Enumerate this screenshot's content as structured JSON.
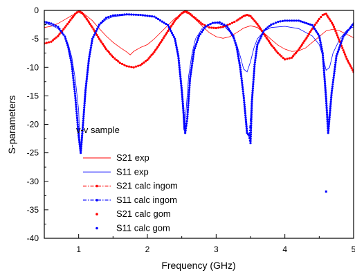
{
  "chart_data": {
    "type": "line",
    "title": "",
    "xlabel": "Frequency (GHz)",
    "ylabel": "S-parameters",
    "xlim": [
      0.5,
      5.0
    ],
    "ylim": [
      -40,
      0
    ],
    "x_ticks": [
      1,
      2,
      3,
      4,
      5
    ],
    "x_tick_labels": [
      "1",
      "2",
      "3",
      "4",
      "5"
    ],
    "y_ticks": [
      0,
      -5,
      -10,
      -15,
      -20,
      -25,
      -30,
      -35,
      -40
    ],
    "y_tick_labels": [
      "0",
      "-5",
      "-10",
      "-15",
      "-20",
      "-25",
      "-30",
      "-35",
      "-40"
    ],
    "grid": false,
    "legend_position": "bottom-left",
    "annotation": "v-v sample",
    "colors": {
      "red": "#ff0000",
      "blue": "#0000ff"
    },
    "series": [
      {
        "name": "S21 exp",
        "style": "thin-line",
        "color": "#ff0000",
        "x": [
          0.5,
          0.6,
          0.7,
          0.8,
          0.9,
          1.0,
          1.1,
          1.2,
          1.3,
          1.4,
          1.5,
          1.6,
          1.7,
          1.75,
          1.8,
          1.9,
          2.0,
          2.1,
          2.2,
          2.3,
          2.4,
          2.5,
          2.55,
          2.6,
          2.7,
          2.8,
          2.9,
          3.0,
          3.1,
          3.2,
          3.3,
          3.4,
          3.5,
          3.6,
          3.7,
          3.8,
          3.9,
          4.0,
          4.1,
          4.2,
          4.3,
          4.4,
          4.5,
          4.6,
          4.7,
          4.8,
          4.9,
          5.0
        ],
        "y": [
          -3.0,
          -2.8,
          -2.3,
          -1.6,
          -0.9,
          -0.4,
          -0.8,
          -1.8,
          -3.2,
          -4.5,
          -5.6,
          -6.5,
          -7.3,
          -7.8,
          -7.2,
          -6.5,
          -6.0,
          -5.0,
          -3.8,
          -2.6,
          -1.4,
          -0.6,
          -0.4,
          -0.6,
          -1.6,
          -2.8,
          -3.9,
          -4.6,
          -4.9,
          -4.6,
          -3.9,
          -3.1,
          -2.7,
          -3.0,
          -4.0,
          -5.1,
          -6.1,
          -6.8,
          -7.2,
          -7.1,
          -6.6,
          -5.6,
          -4.6,
          -3.6,
          -3.3,
          -3.6,
          -4.2,
          -4.8
        ]
      },
      {
        "name": "S11 exp",
        "style": "thin-line",
        "color": "#0000ff",
        "x": [
          0.5,
          0.6,
          0.7,
          0.8,
          0.85,
          0.9,
          0.95,
          1.0,
          1.02,
          1.05,
          1.1,
          1.15,
          1.2,
          1.3,
          1.4,
          1.5,
          1.7,
          1.9,
          2.1,
          2.3,
          2.4,
          2.45,
          2.5,
          2.53,
          2.56,
          2.6,
          2.65,
          2.7,
          2.8,
          2.9,
          3.0,
          3.1,
          3.2,
          3.3,
          3.35,
          3.4,
          3.45,
          3.5,
          3.55,
          3.6,
          3.7,
          3.8,
          4.0,
          4.2,
          4.4,
          4.5,
          4.55,
          4.6,
          4.65,
          4.7,
          4.8,
          4.9,
          5.0
        ],
        "y": [
          -2.2,
          -2.6,
          -3.2,
          -4.6,
          -6.0,
          -8.2,
          -12.0,
          -17.5,
          -24.5,
          -22.0,
          -14.5,
          -8.5,
          -5.0,
          -2.6,
          -1.6,
          -1.1,
          -0.8,
          -0.8,
          -1.1,
          -2.6,
          -5.0,
          -8.5,
          -14.5,
          -21.0,
          -18.0,
          -11.5,
          -7.5,
          -5.0,
          -3.1,
          -2.4,
          -2.2,
          -2.6,
          -3.8,
          -6.0,
          -8.0,
          -10.3,
          -10.8,
          -9.0,
          -6.6,
          -5.0,
          -3.6,
          -3.0,
          -2.8,
          -3.2,
          -4.5,
          -6.0,
          -8.0,
          -10.5,
          -10.0,
          -7.5,
          -5.0,
          -3.5,
          -2.9
        ]
      },
      {
        "name": "S21 calc ingom",
        "style": "dash-dot",
        "color": "#ff0000",
        "x": [
          0.5,
          0.6,
          0.7,
          0.8,
          0.9,
          0.95,
          1.0,
          1.05,
          1.1,
          1.2,
          1.3,
          1.4,
          1.5,
          1.6,
          1.7,
          1.8,
          1.9,
          2.0,
          2.1,
          2.2,
          2.3,
          2.4,
          2.5,
          2.55,
          2.6,
          2.7,
          2.8,
          2.9,
          3.0,
          3.1,
          3.2,
          3.3,
          3.4,
          3.45,
          3.5,
          3.6,
          3.7,
          3.8,
          3.9,
          4.0,
          4.1,
          4.2,
          4.3,
          4.4,
          4.5,
          4.55,
          4.6,
          4.7,
          4.8,
          4.9,
          5.0
        ],
        "y": [
          -5.8,
          -5.5,
          -4.5,
          -3.0,
          -1.4,
          -0.6,
          -0.1,
          -0.4,
          -1.2,
          -3.0,
          -5.0,
          -6.8,
          -8.2,
          -9.2,
          -9.8,
          -10.0,
          -9.6,
          -8.7,
          -7.3,
          -5.5,
          -3.6,
          -1.8,
          -0.5,
          -0.1,
          -0.4,
          -1.4,
          -2.4,
          -3.0,
          -3.1,
          -2.9,
          -2.4,
          -1.8,
          -1.0,
          -0.8,
          -1.0,
          -2.4,
          -4.2,
          -6.0,
          -7.5,
          -8.6,
          -8.3,
          -6.9,
          -5.1,
          -3.2,
          -1.5,
          -0.8,
          -0.6,
          -2.5,
          -5.5,
          -8.5,
          -10.8
        ]
      },
      {
        "name": "S11 calc ingom",
        "style": "dash-dot",
        "color": "#0000ff",
        "x": [
          0.5,
          0.6,
          0.7,
          0.8,
          0.85,
          0.9,
          0.95,
          1.0,
          1.03,
          1.06,
          1.1,
          1.15,
          1.2,
          1.3,
          1.4,
          1.5,
          1.7,
          1.9,
          2.1,
          2.3,
          2.4,
          2.45,
          2.5,
          2.55,
          2.58,
          2.62,
          2.68,
          2.75,
          2.85,
          2.95,
          3.05,
          3.15,
          3.25,
          3.3,
          3.35,
          3.4,
          3.45,
          3.48,
          3.52,
          3.56,
          3.6,
          3.7,
          3.8,
          3.9,
          4.0,
          4.2,
          4.4,
          4.5,
          4.55,
          4.6,
          4.63,
          4.68,
          4.75,
          4.85,
          5.0
        ],
        "y": [
          -2.0,
          -2.3,
          -2.9,
          -4.6,
          -6.5,
          -9.5,
          -15.0,
          -22.0,
          -25.0,
          -20.5,
          -14.0,
          -8.5,
          -5.0,
          -2.5,
          -1.3,
          -0.9,
          -0.7,
          -0.8,
          -1.1,
          -2.6,
          -5.0,
          -8.0,
          -14.0,
          -21.5,
          -19.0,
          -12.0,
          -7.0,
          -4.5,
          -2.8,
          -2.2,
          -2.1,
          -2.7,
          -4.5,
          -6.5,
          -10.0,
          -15.0,
          -21.5,
          -22.0,
          -16.0,
          -9.5,
          -6.0,
          -3.5,
          -2.5,
          -2.0,
          -1.8,
          -1.8,
          -2.6,
          -4.5,
          -7.5,
          -15.5,
          -21.5,
          -14.5,
          -8.0,
          -4.6,
          -2.3
        ]
      },
      {
        "name": "S21 calc gom",
        "style": "dots",
        "color": "#ff0000",
        "x": [
          0.5,
          0.6,
          0.7,
          0.8,
          0.9,
          0.95,
          1.0,
          1.05,
          1.1,
          1.2,
          1.3,
          1.4,
          1.5,
          1.6,
          1.7,
          1.8,
          1.9,
          2.0,
          2.1,
          2.2,
          2.3,
          2.4,
          2.5,
          2.55,
          2.6,
          2.7,
          2.8,
          2.9,
          3.0,
          3.1,
          3.2,
          3.3,
          3.4,
          3.45,
          3.5,
          3.6,
          3.7,
          3.8,
          3.9,
          4.0,
          4.1,
          4.2,
          4.3,
          4.4,
          4.5,
          4.55,
          4.6,
          4.7,
          4.8,
          4.9,
          5.0
        ],
        "y": [
          -5.8,
          -5.5,
          -4.5,
          -3.0,
          -1.4,
          -0.6,
          -0.1,
          -0.4,
          -1.2,
          -3.0,
          -5.0,
          -6.8,
          -8.2,
          -9.2,
          -9.8,
          -10.0,
          -9.6,
          -8.7,
          -7.3,
          -5.5,
          -3.6,
          -1.8,
          -0.5,
          -0.1,
          -0.4,
          -1.4,
          -2.4,
          -3.0,
          -3.1,
          -2.9,
          -2.4,
          -1.8,
          -1.0,
          -0.8,
          -1.0,
          -2.4,
          -4.2,
          -6.0,
          -7.5,
          -8.6,
          -8.3,
          -6.9,
          -5.1,
          -3.2,
          -1.5,
          -0.8,
          -0.6,
          -2.5,
          -5.5,
          -8.5,
          -10.8
        ]
      },
      {
        "name": "S11 calc gom",
        "style": "dots",
        "color": "#0000ff",
        "x": [
          0.5,
          0.6,
          0.7,
          0.8,
          0.85,
          0.9,
          0.95,
          1.0,
          1.03,
          1.06,
          1.1,
          1.15,
          1.2,
          1.3,
          1.4,
          1.5,
          1.7,
          1.9,
          2.1,
          2.3,
          2.4,
          2.45,
          2.5,
          2.55,
          2.58,
          2.62,
          2.68,
          2.75,
          2.85,
          2.95,
          3.05,
          3.15,
          3.25,
          3.3,
          3.35,
          3.4,
          3.45,
          3.48,
          3.5,
          3.52,
          3.56,
          3.6,
          3.7,
          3.8,
          3.9,
          4.0,
          4.2,
          4.4,
          4.5,
          4.55,
          4.6,
          4.63,
          4.68,
          4.75,
          4.85,
          5.0
        ],
        "y": [
          -2.0,
          -2.3,
          -2.9,
          -4.6,
          -6.5,
          -9.5,
          -15.0,
          -22.0,
          -25.0,
          -20.5,
          -14.0,
          -8.5,
          -5.0,
          -2.5,
          -1.3,
          -0.9,
          -0.7,
          -0.8,
          -1.1,
          -2.6,
          -5.0,
          -8.0,
          -14.0,
          -21.5,
          -19.0,
          -12.0,
          -7.0,
          -4.5,
          -2.8,
          -2.2,
          -2.1,
          -2.7,
          -4.5,
          -6.5,
          -10.0,
          -15.0,
          -21.5,
          -22.0,
          -23.3,
          -16.0,
          -9.5,
          -6.0,
          -3.5,
          -2.5,
          -2.0,
          -1.8,
          -1.8,
          -2.6,
          -4.5,
          -7.5,
          -15.5,
          -21.5,
          -14.5,
          -8.0,
          -4.6,
          -2.3
        ]
      }
    ],
    "outliers": [
      {
        "series": "S11 calc gom",
        "x": 4.6,
        "y": -31.8,
        "color": "#0000ff"
      }
    ]
  }
}
